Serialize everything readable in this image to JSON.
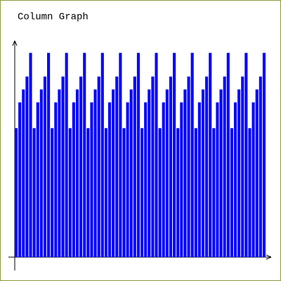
{
  "chart_data": {
    "type": "bar",
    "title": "Column Graph",
    "values": [
      60,
      72,
      78,
      84,
      95,
      60,
      72,
      78,
      84,
      95,
      60,
      72,
      78,
      84,
      95,
      60,
      72,
      78,
      84,
      95,
      60,
      72,
      78,
      84,
      95,
      60,
      72,
      78,
      84,
      95,
      60,
      72,
      78,
      84,
      95,
      60,
      72,
      78,
      84,
      95,
      60,
      72,
      78,
      84,
      95,
      60,
      72,
      78,
      84,
      95,
      60,
      72,
      78,
      84,
      95,
      60,
      72,
      78,
      84,
      95,
      60,
      72,
      78,
      84,
      95,
      60,
      72,
      78,
      84,
      95
    ],
    "color": "#0000ff",
    "ylim": [
      0,
      100
    ]
  }
}
